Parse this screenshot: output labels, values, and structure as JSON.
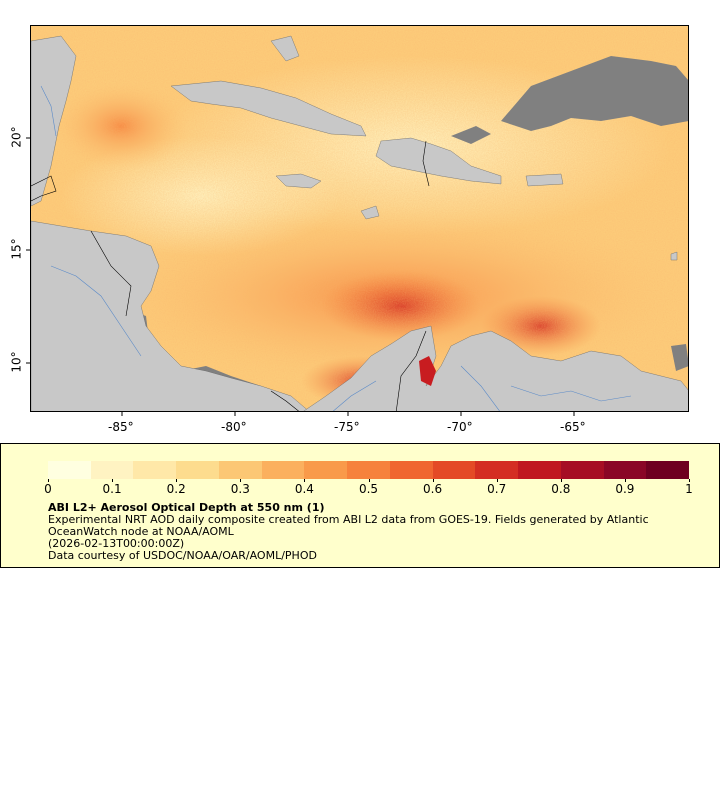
{
  "map": {
    "lat_labels": [
      "20°",
      "15°",
      "10°"
    ],
    "lon_labels": [
      "-85°",
      "-80°",
      "-75°",
      "-70°",
      "-65°"
    ],
    "colors": {
      "land": "#c8c8c8",
      "missing": "#808080",
      "low": "#ffe8a8",
      "mid": "#f7a04a",
      "high": "#c81c20",
      "border": "#000000",
      "river": "#5a8ac8"
    }
  },
  "legend": {
    "tick_labels": [
      "0",
      "0.1",
      "0.2",
      "0.3",
      "0.4",
      "0.5",
      "0.6",
      "0.7",
      "0.8",
      "0.9",
      "1"
    ],
    "title": "ABI L2+ Aerosol Optical Depth at 550 nm (1)",
    "desc_line1": "Experimental NRT AOD daily composite created from ABI L2 data from GOES-19. Fields generated by Atlantic",
    "desc_line2": "OceanWatch node at NOAA/AOML",
    "desc_line3": "(2026-02-13T00:00:00Z)",
    "desc_line4": "Data courtesy of USDOC/NOAA/OAR/AOML/PHOD",
    "colors": [
      "#ffffe0",
      "#fff3c2",
      "#ffe8a8",
      "#fddc8e",
      "#fcc774",
      "#fbb05e",
      "#f99a4a",
      "#f6823c",
      "#f06630",
      "#e44a26",
      "#d42e22",
      "#c0181f",
      "#a60e24",
      "#8a0626",
      "#6e0020"
    ]
  }
}
